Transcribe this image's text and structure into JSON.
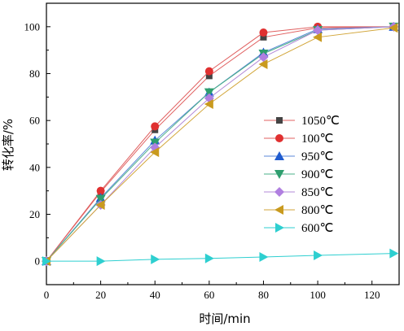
{
  "chart_data": {
    "type": "line",
    "xlabel": "时间/min",
    "ylabel": "转化率/%",
    "xlim": [
      0,
      130
    ],
    "ylim": [
      -10,
      110
    ],
    "xticks": [
      0,
      20,
      40,
      60,
      80,
      100,
      120
    ],
    "yticks": [
      0,
      20,
      40,
      60,
      80,
      100
    ],
    "x": [
      0,
      20,
      40,
      60,
      80,
      100,
      128
    ],
    "legend_position": "center-right",
    "grid": false,
    "series": [
      {
        "name": "1050℃",
        "marker": "square",
        "color": "#444444",
        "line_color": "#e06060",
        "x": [
          0,
          20,
          40,
          60,
          80,
          100,
          128
        ],
        "values": [
          0,
          29.5,
          56,
          79,
          95.5,
          99.5,
          100
        ]
      },
      {
        "name": "100℃",
        "marker": "circle",
        "color": "#e03030",
        "line_color": "#e06060",
        "x": [
          0,
          20,
          40,
          60,
          80,
          100,
          128
        ],
        "values": [
          0,
          30,
          57.5,
          81,
          97.5,
          100,
          100
        ]
      },
      {
        "name": "950℃",
        "marker": "triangle-up",
        "color": "#1f5bcf",
        "line_color": "#5b87d8",
        "x": [
          0,
          20,
          40,
          60,
          80,
          100,
          128
        ],
        "values": [
          0,
          27,
          51.5,
          72,
          89,
          99,
          100
        ]
      },
      {
        "name": "900℃",
        "marker": "triangle-down",
        "color": "#2e9e6e",
        "line_color": "#4ab08a",
        "x": [
          0,
          20,
          40,
          60,
          80,
          100,
          128
        ],
        "values": [
          0,
          26.5,
          50.5,
          72,
          88.5,
          98.5,
          100
        ]
      },
      {
        "name": "850℃",
        "marker": "diamond",
        "color": "#b07fe0",
        "line_color": "#b38ad8",
        "x": [
          0,
          20,
          40,
          60,
          80,
          100,
          128
        ],
        "values": [
          0,
          24,
          48.5,
          69.5,
          87,
          98.5,
          100
        ]
      },
      {
        "name": "800℃",
        "marker": "triangle-left",
        "color": "#c99a1e",
        "line_color": "#d2a63a",
        "x": [
          0,
          20,
          40,
          60,
          80,
          100,
          128
        ],
        "values": [
          0,
          24,
          46.5,
          67,
          84,
          95.5,
          99.5
        ]
      },
      {
        "name": "600℃",
        "marker": "triangle-right",
        "color": "#2ecfd0",
        "line_color": "#2ecfd0",
        "x": [
          0,
          20,
          40,
          60,
          80,
          100,
          128
        ],
        "values": [
          0,
          0,
          0.8,
          1.2,
          1.8,
          2.5,
          3.3
        ]
      }
    ]
  }
}
